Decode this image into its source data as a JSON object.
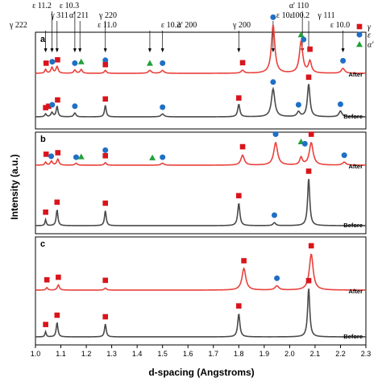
{
  "chart_data": {
    "type": "line",
    "xlabel": "d-spacing (Angstroms)",
    "ylabel": "Intensity (a.u.)",
    "xlim": [
      1.0,
      2.3
    ],
    "x_ticks": [
      "1.0",
      "1.1",
      "1.2",
      "1.3",
      "1.4",
      "1.5",
      "1.6",
      "1.7",
      "1.8",
      "1.9",
      "2.0",
      "2.1",
      "2.2",
      "2.3"
    ],
    "colors": {
      "after": "#e8413c",
      "before": "#4a4a4a",
      "gamma": "#d9141b",
      "epsilon": "#1f6fc5",
      "alpha": "#23a03a"
    },
    "legend": [
      {
        "marker": "square",
        "color": "#d9141b",
        "label": "γ"
      },
      {
        "marker": "circle",
        "color": "#1f6fc5",
        "label": "ε"
      },
      {
        "marker": "triangle",
        "color": "#23a03a",
        "label": "α'"
      }
    ],
    "peak_labels": [
      {
        "text": "γ 222",
        "x": 1.04
      },
      {
        "text": "ε 11.2",
        "x": 1.065
      },
      {
        "text": "γ 311",
        "x": 1.085
      },
      {
        "text": "ε 10.3",
        "x": 1.155
      },
      {
        "text": "α' 211",
        "x": 1.175
      },
      {
        "text": "γ 220",
        "x": 1.275
      },
      {
        "text": "ε 11.0",
        "x": 1.275
      },
      {
        "text": "α' 200",
        "x": 1.45
      },
      {
        "text": "ε 10.2",
        "x": 1.5
      },
      {
        "text": "γ 200",
        "x": 1.8
      },
      {
        "text": "ε 10.1",
        "x": 1.935
      },
      {
        "text": "α' 110",
        "x": 2.05
      },
      {
        "text": "ε 00.2",
        "x": 2.05
      },
      {
        "text": "γ 111",
        "x": 2.075
      },
      {
        "text": "ε 10.0",
        "x": 2.21
      }
    ],
    "panels": [
      {
        "letter": "a",
        "after_label": "After",
        "before_label": "Before",
        "after_peaks": [
          {
            "x": 1.04,
            "h": 0.08,
            "w": 0.004
          },
          {
            "x": 1.065,
            "h": 0.12,
            "w": 0.005
          },
          {
            "x": 1.085,
            "h": 0.14,
            "w": 0.005
          },
          {
            "x": 1.155,
            "h": 0.07,
            "w": 0.005
          },
          {
            "x": 1.18,
            "h": 0.08,
            "w": 0.005
          },
          {
            "x": 1.275,
            "h": 0.06,
            "w": 0.005
          },
          {
            "x": 1.45,
            "h": 0.06,
            "w": 0.007
          },
          {
            "x": 1.5,
            "h": 0.06,
            "w": 0.007
          },
          {
            "x": 1.815,
            "h": 0.06,
            "w": 0.007
          },
          {
            "x": 1.935,
            "h": 1.0,
            "w": 0.008
          },
          {
            "x": 2.045,
            "h": 0.65,
            "w": 0.008
          },
          {
            "x": 2.08,
            "h": 0.24,
            "w": 0.007
          },
          {
            "x": 2.21,
            "h": 0.1,
            "w": 0.008
          }
        ],
        "after_markers": [
          {
            "x": 1.042,
            "h": 0.21,
            "m": "square"
          },
          {
            "x": 1.066,
            "h": 0.24,
            "m": "circle"
          },
          {
            "x": 1.087,
            "h": 0.28,
            "m": "square"
          },
          {
            "x": 1.155,
            "h": 0.21,
            "m": "circle"
          },
          {
            "x": 1.18,
            "h": 0.24,
            "m": "triangle"
          },
          {
            "x": 1.275,
            "h": 0.27,
            "m": "circle"
          },
          {
            "x": 1.275,
            "h": 0.18,
            "m": "square"
          },
          {
            "x": 1.45,
            "h": 0.21,
            "m": "triangle"
          },
          {
            "x": 1.5,
            "h": 0.21,
            "m": "circle"
          },
          {
            "x": 1.815,
            "h": 0.22,
            "m": "square"
          },
          {
            "x": 1.935,
            "h": 1.16,
            "m": "circle"
          },
          {
            "x": 2.045,
            "h": 0.8,
            "m": "triangle"
          },
          {
            "x": 2.055,
            "h": 0.7,
            "m": "circle"
          },
          {
            "x": 2.08,
            "h": 0.5,
            "m": "square"
          },
          {
            "x": 2.21,
            "h": 0.26,
            "m": "circle"
          }
        ],
        "before_peaks": [
          {
            "x": 1.04,
            "h": 0.06,
            "w": 0.004
          },
          {
            "x": 1.065,
            "h": 0.09,
            "w": 0.005
          },
          {
            "x": 1.085,
            "h": 0.22,
            "w": 0.004
          },
          {
            "x": 1.155,
            "h": 0.08,
            "w": 0.005
          },
          {
            "x": 1.275,
            "h": 0.24,
            "w": 0.004
          },
          {
            "x": 1.5,
            "h": 0.06,
            "w": 0.007
          },
          {
            "x": 1.8,
            "h": 0.26,
            "w": 0.005
          },
          {
            "x": 1.935,
            "h": 0.58,
            "w": 0.008
          },
          {
            "x": 2.035,
            "h": 0.1,
            "w": 0.007
          },
          {
            "x": 2.075,
            "h": 0.68,
            "w": 0.006
          },
          {
            "x": 2.2,
            "h": 0.12,
            "w": 0.007
          }
        ],
        "before_markers": [
          {
            "x": 1.04,
            "h": 0.19,
            "m": "square"
          },
          {
            "x": 1.052,
            "h": 0.22,
            "m": "square"
          },
          {
            "x": 1.066,
            "h": 0.25,
            "m": "circle"
          },
          {
            "x": 1.087,
            "h": 0.35,
            "m": "square"
          },
          {
            "x": 1.155,
            "h": 0.22,
            "m": "circle"
          },
          {
            "x": 1.275,
            "h": 0.37,
            "m": "square"
          },
          {
            "x": 1.5,
            "h": 0.2,
            "m": "circle"
          },
          {
            "x": 1.8,
            "h": 0.39,
            "m": "square"
          },
          {
            "x": 1.935,
            "h": 0.72,
            "m": "circle"
          },
          {
            "x": 2.035,
            "h": 0.25,
            "m": "circle"
          },
          {
            "x": 2.075,
            "h": 0.82,
            "m": "square"
          },
          {
            "x": 2.2,
            "h": 0.26,
            "m": "circle"
          }
        ]
      },
      {
        "letter": "b",
        "after_label": "After",
        "before_label": "Before",
        "after_peaks": [
          {
            "x": 1.04,
            "h": 0.06,
            "w": 0.004
          },
          {
            "x": 1.063,
            "h": 0.08,
            "w": 0.005
          },
          {
            "x": 1.088,
            "h": 0.12,
            "w": 0.005
          },
          {
            "x": 1.16,
            "h": 0.04,
            "w": 0.005
          },
          {
            "x": 1.275,
            "h": 0.05,
            "w": 0.005
          },
          {
            "x": 1.5,
            "h": 0.04,
            "w": 0.007
          },
          {
            "x": 1.815,
            "h": 0.2,
            "w": 0.008
          },
          {
            "x": 1.945,
            "h": 0.45,
            "w": 0.009
          },
          {
            "x": 2.045,
            "h": 0.15,
            "w": 0.006
          },
          {
            "x": 2.085,
            "h": 0.45,
            "w": 0.009
          },
          {
            "x": 2.215,
            "h": 0.06,
            "w": 0.008
          }
        ],
        "after_markers": [
          {
            "x": 1.042,
            "h": 0.22,
            "m": "square"
          },
          {
            "x": 1.062,
            "h": 0.18,
            "m": "circle"
          },
          {
            "x": 1.088,
            "h": 0.25,
            "m": "square"
          },
          {
            "x": 1.16,
            "h": 0.16,
            "m": "circle"
          },
          {
            "x": 1.18,
            "h": 0.17,
            "m": "triangle"
          },
          {
            "x": 1.275,
            "h": 0.3,
            "m": "circle"
          },
          {
            "x": 1.275,
            "h": 0.19,
            "m": "square"
          },
          {
            "x": 1.46,
            "h": 0.15,
            "m": "triangle"
          },
          {
            "x": 1.5,
            "h": 0.16,
            "m": "circle"
          },
          {
            "x": 1.815,
            "h": 0.37,
            "m": "square"
          },
          {
            "x": 1.945,
            "h": 0.62,
            "m": "circle"
          },
          {
            "x": 2.045,
            "h": 0.47,
            "m": "triangle"
          },
          {
            "x": 2.06,
            "h": 0.43,
            "m": "circle"
          },
          {
            "x": 2.085,
            "h": 0.62,
            "m": "square"
          },
          {
            "x": 2.215,
            "h": 0.2,
            "m": "circle"
          }
        ],
        "before_peaks": [
          {
            "x": 1.04,
            "h": 0.12,
            "w": 0.003
          },
          {
            "x": 1.085,
            "h": 0.32,
            "w": 0.004
          },
          {
            "x": 1.275,
            "h": 0.3,
            "w": 0.004
          },
          {
            "x": 1.8,
            "h": 0.45,
            "w": 0.005
          },
          {
            "x": 1.94,
            "h": 0.06,
            "w": 0.006
          },
          {
            "x": 2.075,
            "h": 0.95,
            "w": 0.005
          }
        ],
        "before_markers": [
          {
            "x": 1.04,
            "h": 0.27,
            "m": "square"
          },
          {
            "x": 1.085,
            "h": 0.47,
            "m": "square"
          },
          {
            "x": 1.275,
            "h": 0.45,
            "m": "square"
          },
          {
            "x": 1.8,
            "h": 0.6,
            "m": "square"
          },
          {
            "x": 1.94,
            "h": 0.21,
            "m": "circle"
          },
          {
            "x": 2.075,
            "h": 1.09,
            "m": "square"
          }
        ]
      },
      {
        "letter": "c",
        "after_label": "After",
        "before_label": "Before",
        "after_peaks": [
          {
            "x": 1.045,
            "h": 0.05,
            "w": 0.004
          },
          {
            "x": 1.09,
            "h": 0.1,
            "w": 0.005
          },
          {
            "x": 1.275,
            "h": 0.04,
            "w": 0.005
          },
          {
            "x": 1.82,
            "h": 0.42,
            "w": 0.009
          },
          {
            "x": 1.95,
            "h": 0.08,
            "w": 0.009
          },
          {
            "x": 2.085,
            "h": 0.7,
            "w": 0.009
          }
        ],
        "after_markers": [
          {
            "x": 1.045,
            "h": 0.2,
            "m": "square"
          },
          {
            "x": 1.09,
            "h": 0.25,
            "m": "square"
          },
          {
            "x": 1.275,
            "h": 0.19,
            "m": "square"
          },
          {
            "x": 1.82,
            "h": 0.57,
            "m": "square"
          },
          {
            "x": 1.95,
            "h": 0.23,
            "m": "circle"
          },
          {
            "x": 2.085,
            "h": 0.86,
            "m": "square"
          }
        ],
        "before_peaks": [
          {
            "x": 1.04,
            "h": 0.1,
            "w": 0.003
          },
          {
            "x": 1.085,
            "h": 0.28,
            "w": 0.004
          },
          {
            "x": 1.275,
            "h": 0.25,
            "w": 0.004
          },
          {
            "x": 1.8,
            "h": 0.45,
            "w": 0.005
          },
          {
            "x": 2.075,
            "h": 0.95,
            "w": 0.005
          }
        ],
        "before_markers": [
          {
            "x": 1.04,
            "h": 0.24,
            "m": "square"
          },
          {
            "x": 1.085,
            "h": 0.42,
            "m": "square"
          },
          {
            "x": 1.275,
            "h": 0.39,
            "m": "square"
          },
          {
            "x": 1.8,
            "h": 0.6,
            "m": "square"
          },
          {
            "x": 2.075,
            "h": 1.09,
            "m": "square"
          }
        ]
      }
    ]
  }
}
